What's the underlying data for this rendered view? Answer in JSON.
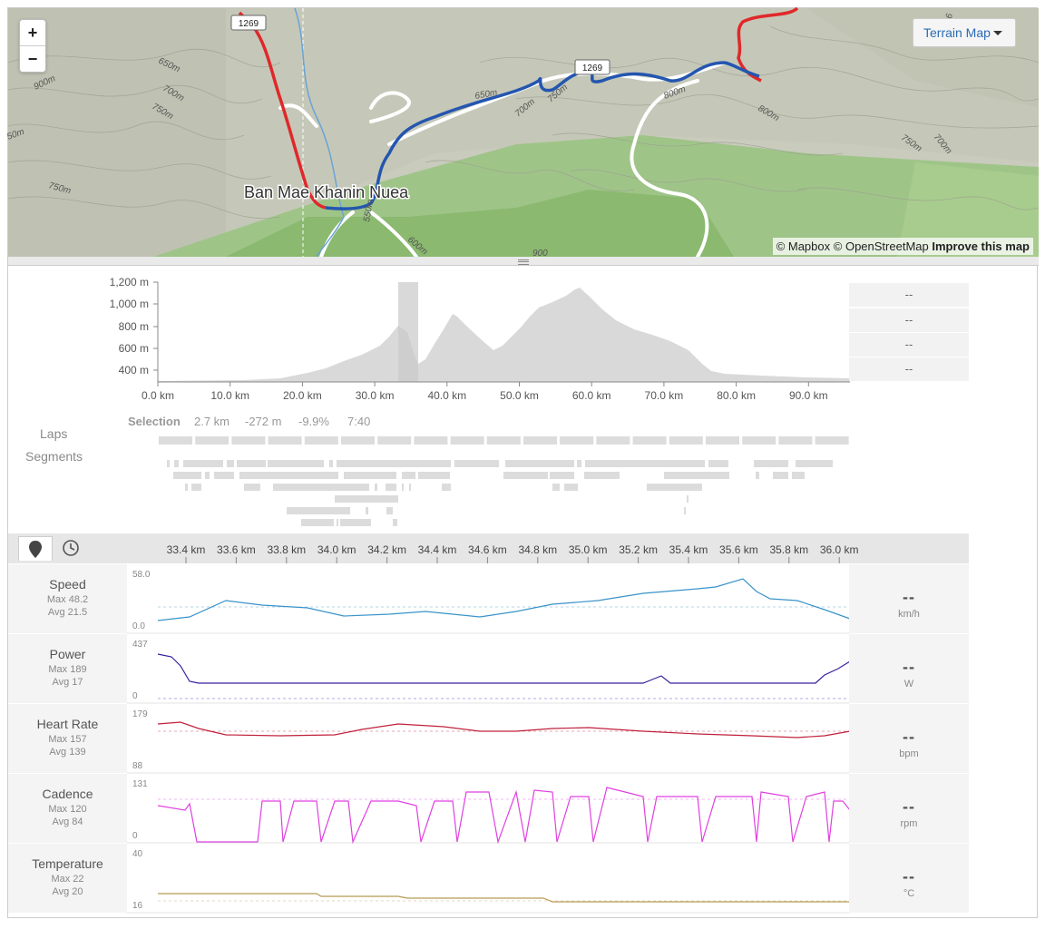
{
  "map": {
    "zoom_in": "+",
    "zoom_out": "−",
    "layer_button": "Terrain Map",
    "place_label": "Ban Mae Khanin Nuea",
    "route_labels": [
      "1269",
      "1269"
    ],
    "contours": [
      "650m",
      "900m",
      "700m",
      "750m",
      "750m",
      "50m",
      "650m",
      "700m",
      "750m",
      "800m",
      "800m",
      "750m",
      "700m",
      "550m",
      "600m",
      "900",
      "700",
      "600m",
      "6"
    ],
    "attribution": {
      "mapbox": "© Mapbox",
      "osm": "© OpenStreetMap",
      "improve": "Improve this map"
    }
  },
  "elevation": {
    "y_ticks": [
      "1,200 m",
      "1,000 m",
      "800 m",
      "600 m",
      "400 m"
    ],
    "x_ticks": [
      "0.0 km",
      "10.0 km",
      "20.0 km",
      "30.0 km",
      "40.0 km",
      "50.0 km",
      "60.0 km",
      "70.0 km",
      "80.0 km",
      "90.0 km"
    ],
    "stats": [
      "--",
      "--",
      "--",
      "--"
    ],
    "selection": {
      "label": "Selection",
      "distance": "2.7 km",
      "elev": "-272 m",
      "grade": "-9.9%",
      "time": "7:40"
    }
  },
  "laps_label": "Laps",
  "segments_label": "Segments",
  "streams": {
    "x_ticks": [
      "33.4 km",
      "33.6 km",
      "33.8 km",
      "34.0 km",
      "34.2 km",
      "34.4 km",
      "34.6 km",
      "34.8 km",
      "35.0 km",
      "35.2 km",
      "35.4 km",
      "35.6 km",
      "35.8 km",
      "36.0 km"
    ],
    "rows": [
      {
        "name": "Speed",
        "max": "Max 48.2",
        "avg": "Avg 21.5",
        "top": "58.0",
        "bottom": "0.0",
        "value": "--",
        "unit": "km/h",
        "color": "#3a93c9"
      },
      {
        "name": "Power",
        "max": "Max 189",
        "avg": "Avg 17",
        "top": "437",
        "bottom": "0",
        "value": "--",
        "unit": "W",
        "color": "#3a1fa0"
      },
      {
        "name": "Heart Rate",
        "max": "Max 157",
        "avg": "Avg 139",
        "top": "179",
        "bottom": "88",
        "value": "--",
        "unit": "bpm",
        "color": "#c0203b"
      },
      {
        "name": "Cadence",
        "max": "Max 120",
        "avg": "Avg 84",
        "top": "131",
        "bottom": "0",
        "value": "--",
        "unit": "rpm",
        "color": "#e040e0"
      },
      {
        "name": "Temperature",
        "max": "Max 22",
        "avg": "Avg 20",
        "top": "40",
        "bottom": "16",
        "value": "--",
        "unit": "°C",
        "color": "#b89a55"
      }
    ]
  },
  "colors": {
    "route_red": "#e0282b",
    "route_blue": "#2456b0"
  }
}
